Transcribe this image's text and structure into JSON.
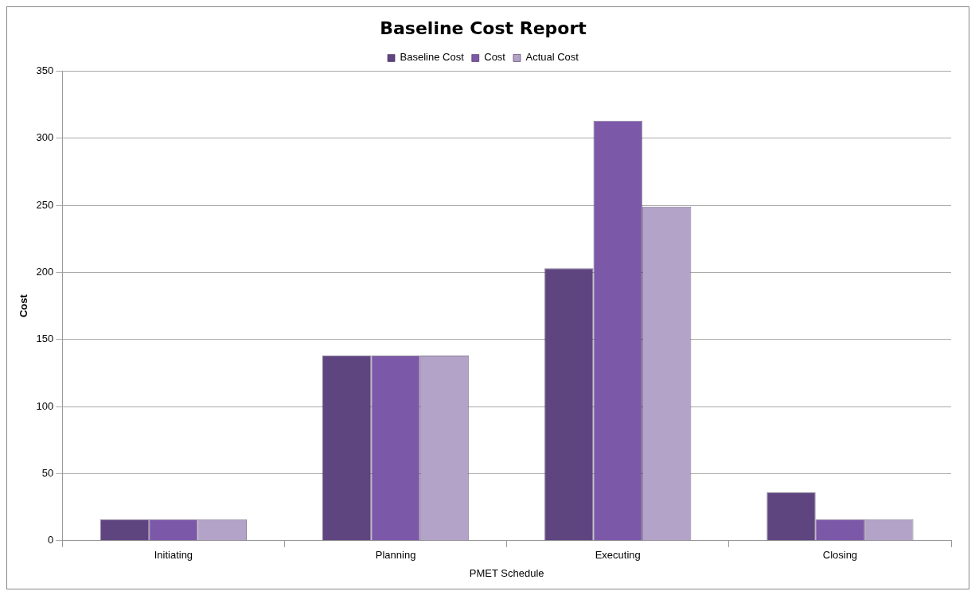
{
  "chart_data": {
    "type": "bar",
    "title": "Baseline Cost Report",
    "xlabel": "PMET Schedule",
    "ylabel": "Cost",
    "categories": [
      "Initiating",
      "Planning",
      "Executing",
      "Closing"
    ],
    "series": [
      {
        "name": "Baseline Cost",
        "color": "#5f4580",
        "values": [
          16,
          138,
          203,
          36
        ]
      },
      {
        "name": "Cost",
        "color": "#7b58a8",
        "values": [
          16,
          138,
          313,
          16
        ]
      },
      {
        "name": "Actual Cost",
        "color": "#b3a3c8",
        "values": [
          16,
          138,
          249,
          16
        ]
      }
    ],
    "ylim": [
      0,
      350
    ],
    "yticks": [
      0,
      50,
      100,
      150,
      200,
      250,
      300,
      350
    ],
    "grid": "y",
    "legend": "top"
  }
}
